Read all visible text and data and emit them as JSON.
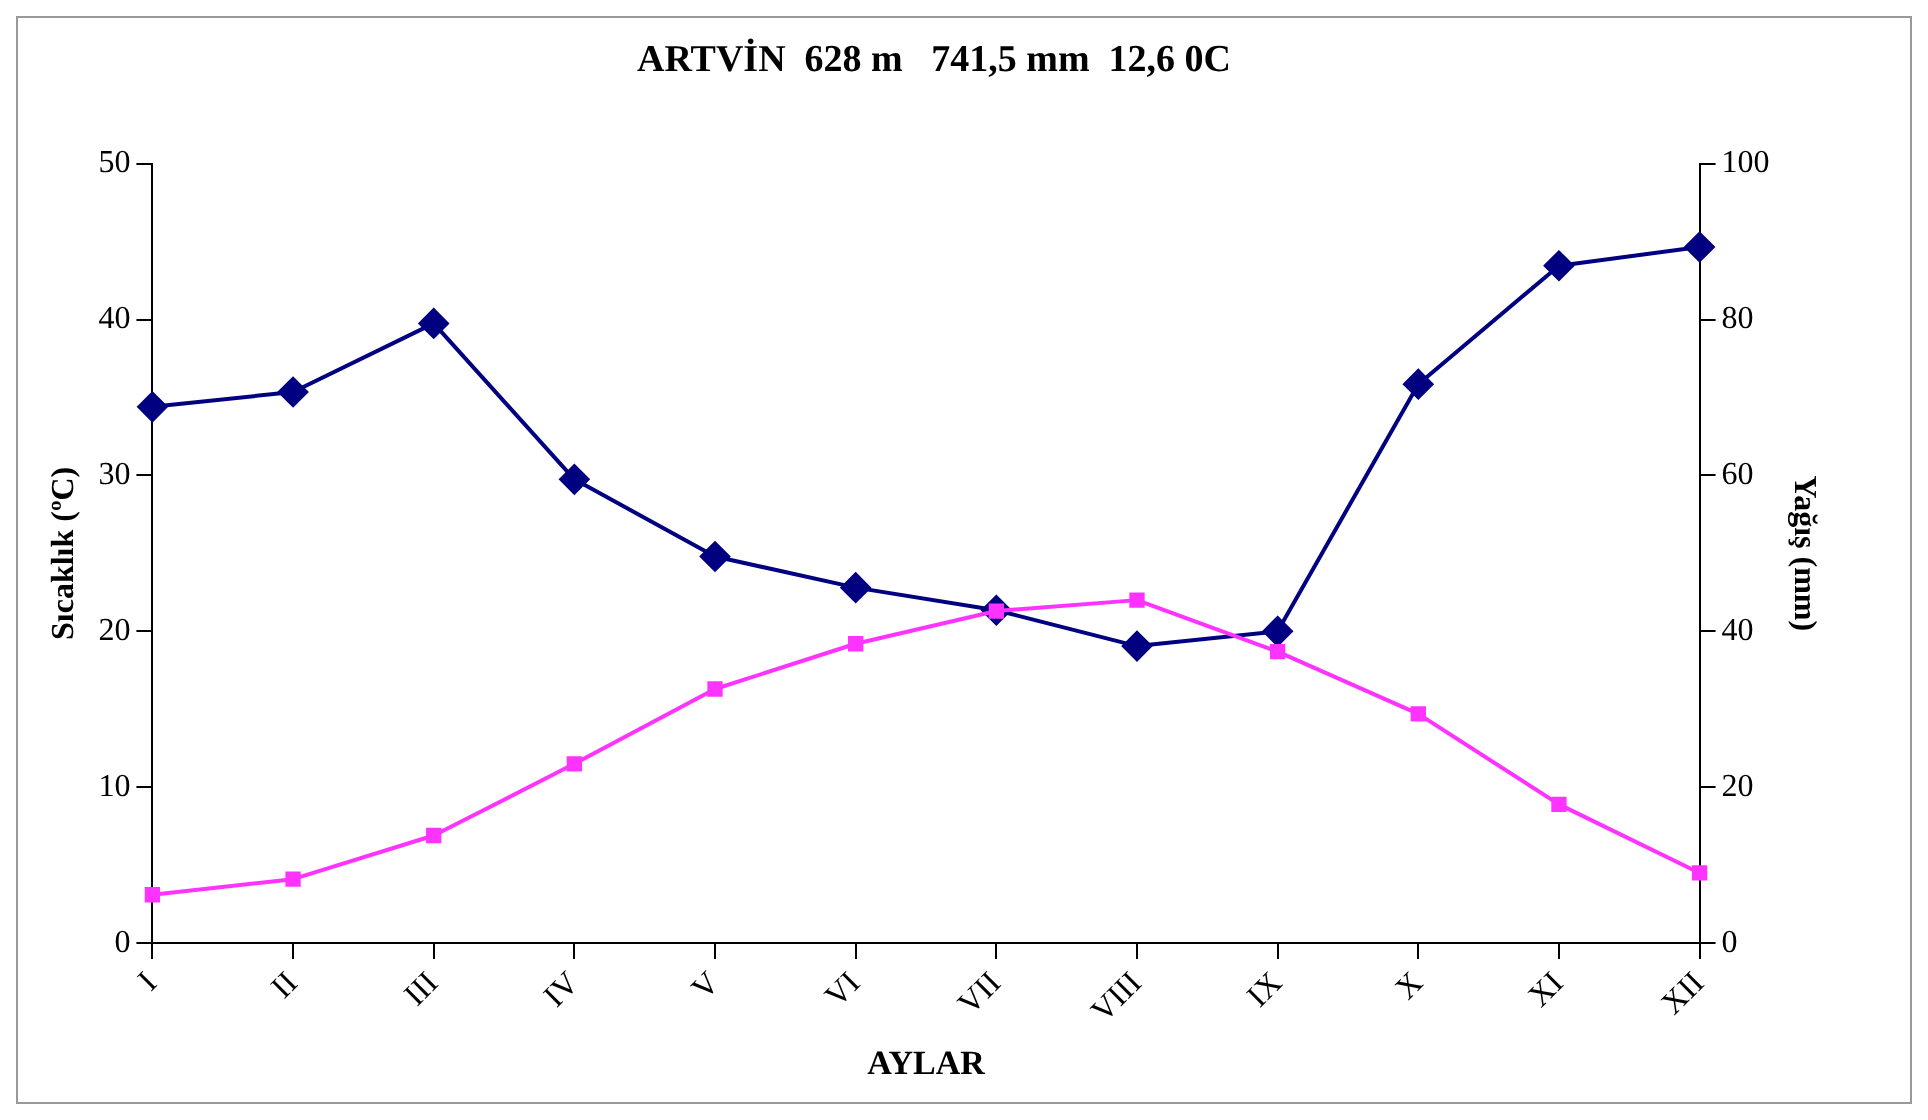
{
  "chart_data": {
    "type": "line",
    "title": "ARTVİN  628 m   741,5 mm  12,6 0C",
    "xlabel": "AYLAR",
    "ylabel": "Sıcaklık (ºC)",
    "y2label": "Yağış (mm)",
    "categories": [
      "I",
      "II",
      "III",
      "IV",
      "V",
      "VI",
      "VII",
      "VIII",
      "IX",
      "X",
      "XI",
      "XII"
    ],
    "series": [
      {
        "color": "#ff33ff",
        "marker": "square",
        "values": [
          3.1,
          4.1,
          6.9,
          11.5,
          16.3,
          19.2,
          21.3,
          22.0,
          18.7,
          14.7,
          8.9,
          4.5
        ]
      },
      {
        "color": "#000080",
        "marker": "diamond",
        "axis": "y2",
        "values": [
          68.8,
          70.7,
          79.5,
          59.5,
          49.6,
          45.6,
          42.7,
          38.1,
          40.0,
          71.7,
          86.9,
          89.3
        ]
      }
    ],
    "ylim": [
      0,
      50
    ],
    "yticks": [
      0,
      10,
      20,
      30,
      40,
      50
    ],
    "y2lim": [
      0,
      100
    ],
    "y2ticks": [
      0,
      20,
      40,
      60,
      80,
      100
    ],
    "grid": false,
    "legend": false,
    "line_style": "solid"
  }
}
